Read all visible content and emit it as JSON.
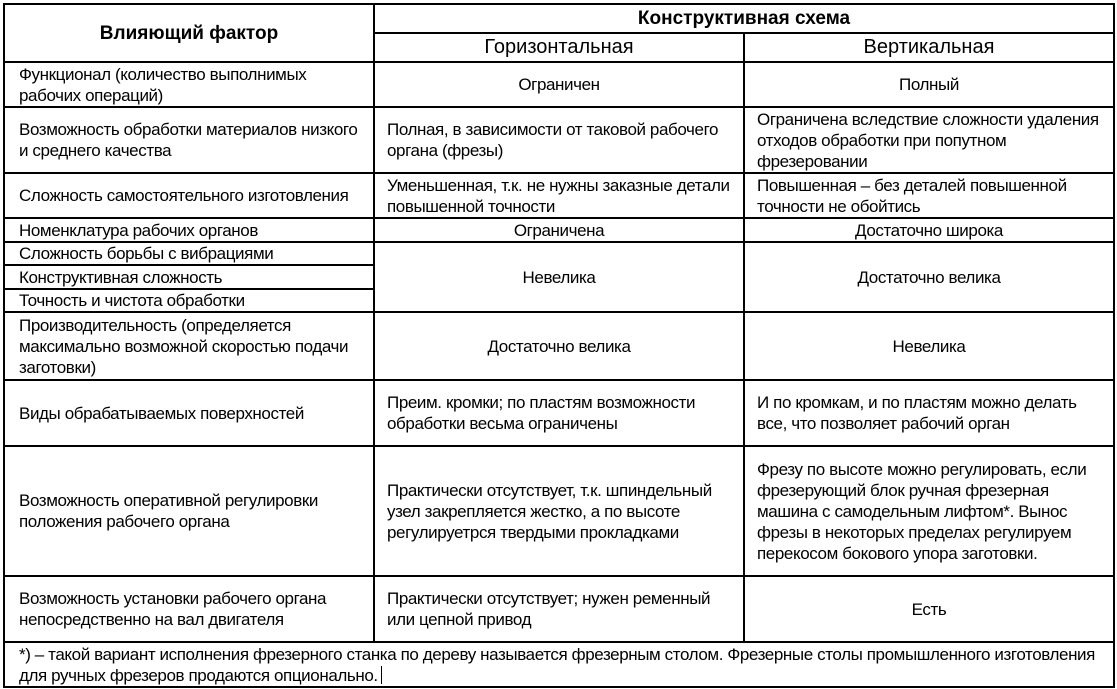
{
  "header": {
    "factor": "Влияющий фактор",
    "scheme": "Конструктивная схема",
    "horizontal": "Горизонтальная",
    "vertical": "Вертикальная"
  },
  "rows": [
    {
      "factor": "Функционал (количество выполнимых рабочих операций)",
      "horizontal": "Ограничен",
      "vertical": "Полный"
    },
    {
      "factor": "Возможность обработки материалов низкого и среднего качества",
      "horizontal": "Полная, в зависимости от таковой рабочего органа (фрезы)",
      "vertical": "Ограничена вследствие сложности удаления отходов обработки при попутном фрезеровании"
    },
    {
      "factor": "Сложность самостоятельного изготовления",
      "horizontal": "Уменьшенная, т.к. не нужны заказные детали повышенной точности",
      "vertical": "Повышенная – без деталей повышенной точности не обойтись"
    },
    {
      "factor": "Номенклатура рабочих органов",
      "horizontal": "Ограничена",
      "vertical": "Достаточно широка"
    },
    {
      "factor": "Сложность борьбы с вибрациями",
      "horizontal": "Невелика",
      "vertical": "Достаточно велика"
    },
    {
      "factor": "Конструктивная сложность"
    },
    {
      "factor": "Точность и чистота обработки"
    },
    {
      "factor": "Производительность (определяется максимально возможной скоростью подачи заготовки)",
      "horizontal": "Достаточно велика",
      "vertical": "Невелика"
    },
    {
      "factor": "Виды обрабатываемых поверхностей",
      "horizontal": "Преим. кромки; по пластям возможности обработки весьма ограничены",
      "vertical": "И по кромкам, и по пластям можно делать все, что позволяет рабочий орган"
    },
    {
      "factor": "Возможность оперативной регулировки положения рабочего органа",
      "horizontal": "Практически отсутствует, т.к. шпиндельный узел закрепляется жестко, а по высоте регулируетрся твердыми прокладками",
      "vertical": "Фрезу по высоте можно регулировать, если фрезерующий блок ручная фрезерная машина с самодельным лифтом*. Вынос фрезы в некоторых пределах регулируем перекосом бокового упора заготовки."
    },
    {
      "factor": "Возможность установки рабочего органа непосредственно на вал двигателя",
      "horizontal": "Практически отсутствует; нужен ременный или цепной привод",
      "vertical": "Есть"
    }
  ],
  "footnote": "*) – такой вариант исполнения фрезерного станка по дереву называется фрезерным столом. Фрезерные столы промышленного изготовления для ручных фрезеров продаются опционально."
}
